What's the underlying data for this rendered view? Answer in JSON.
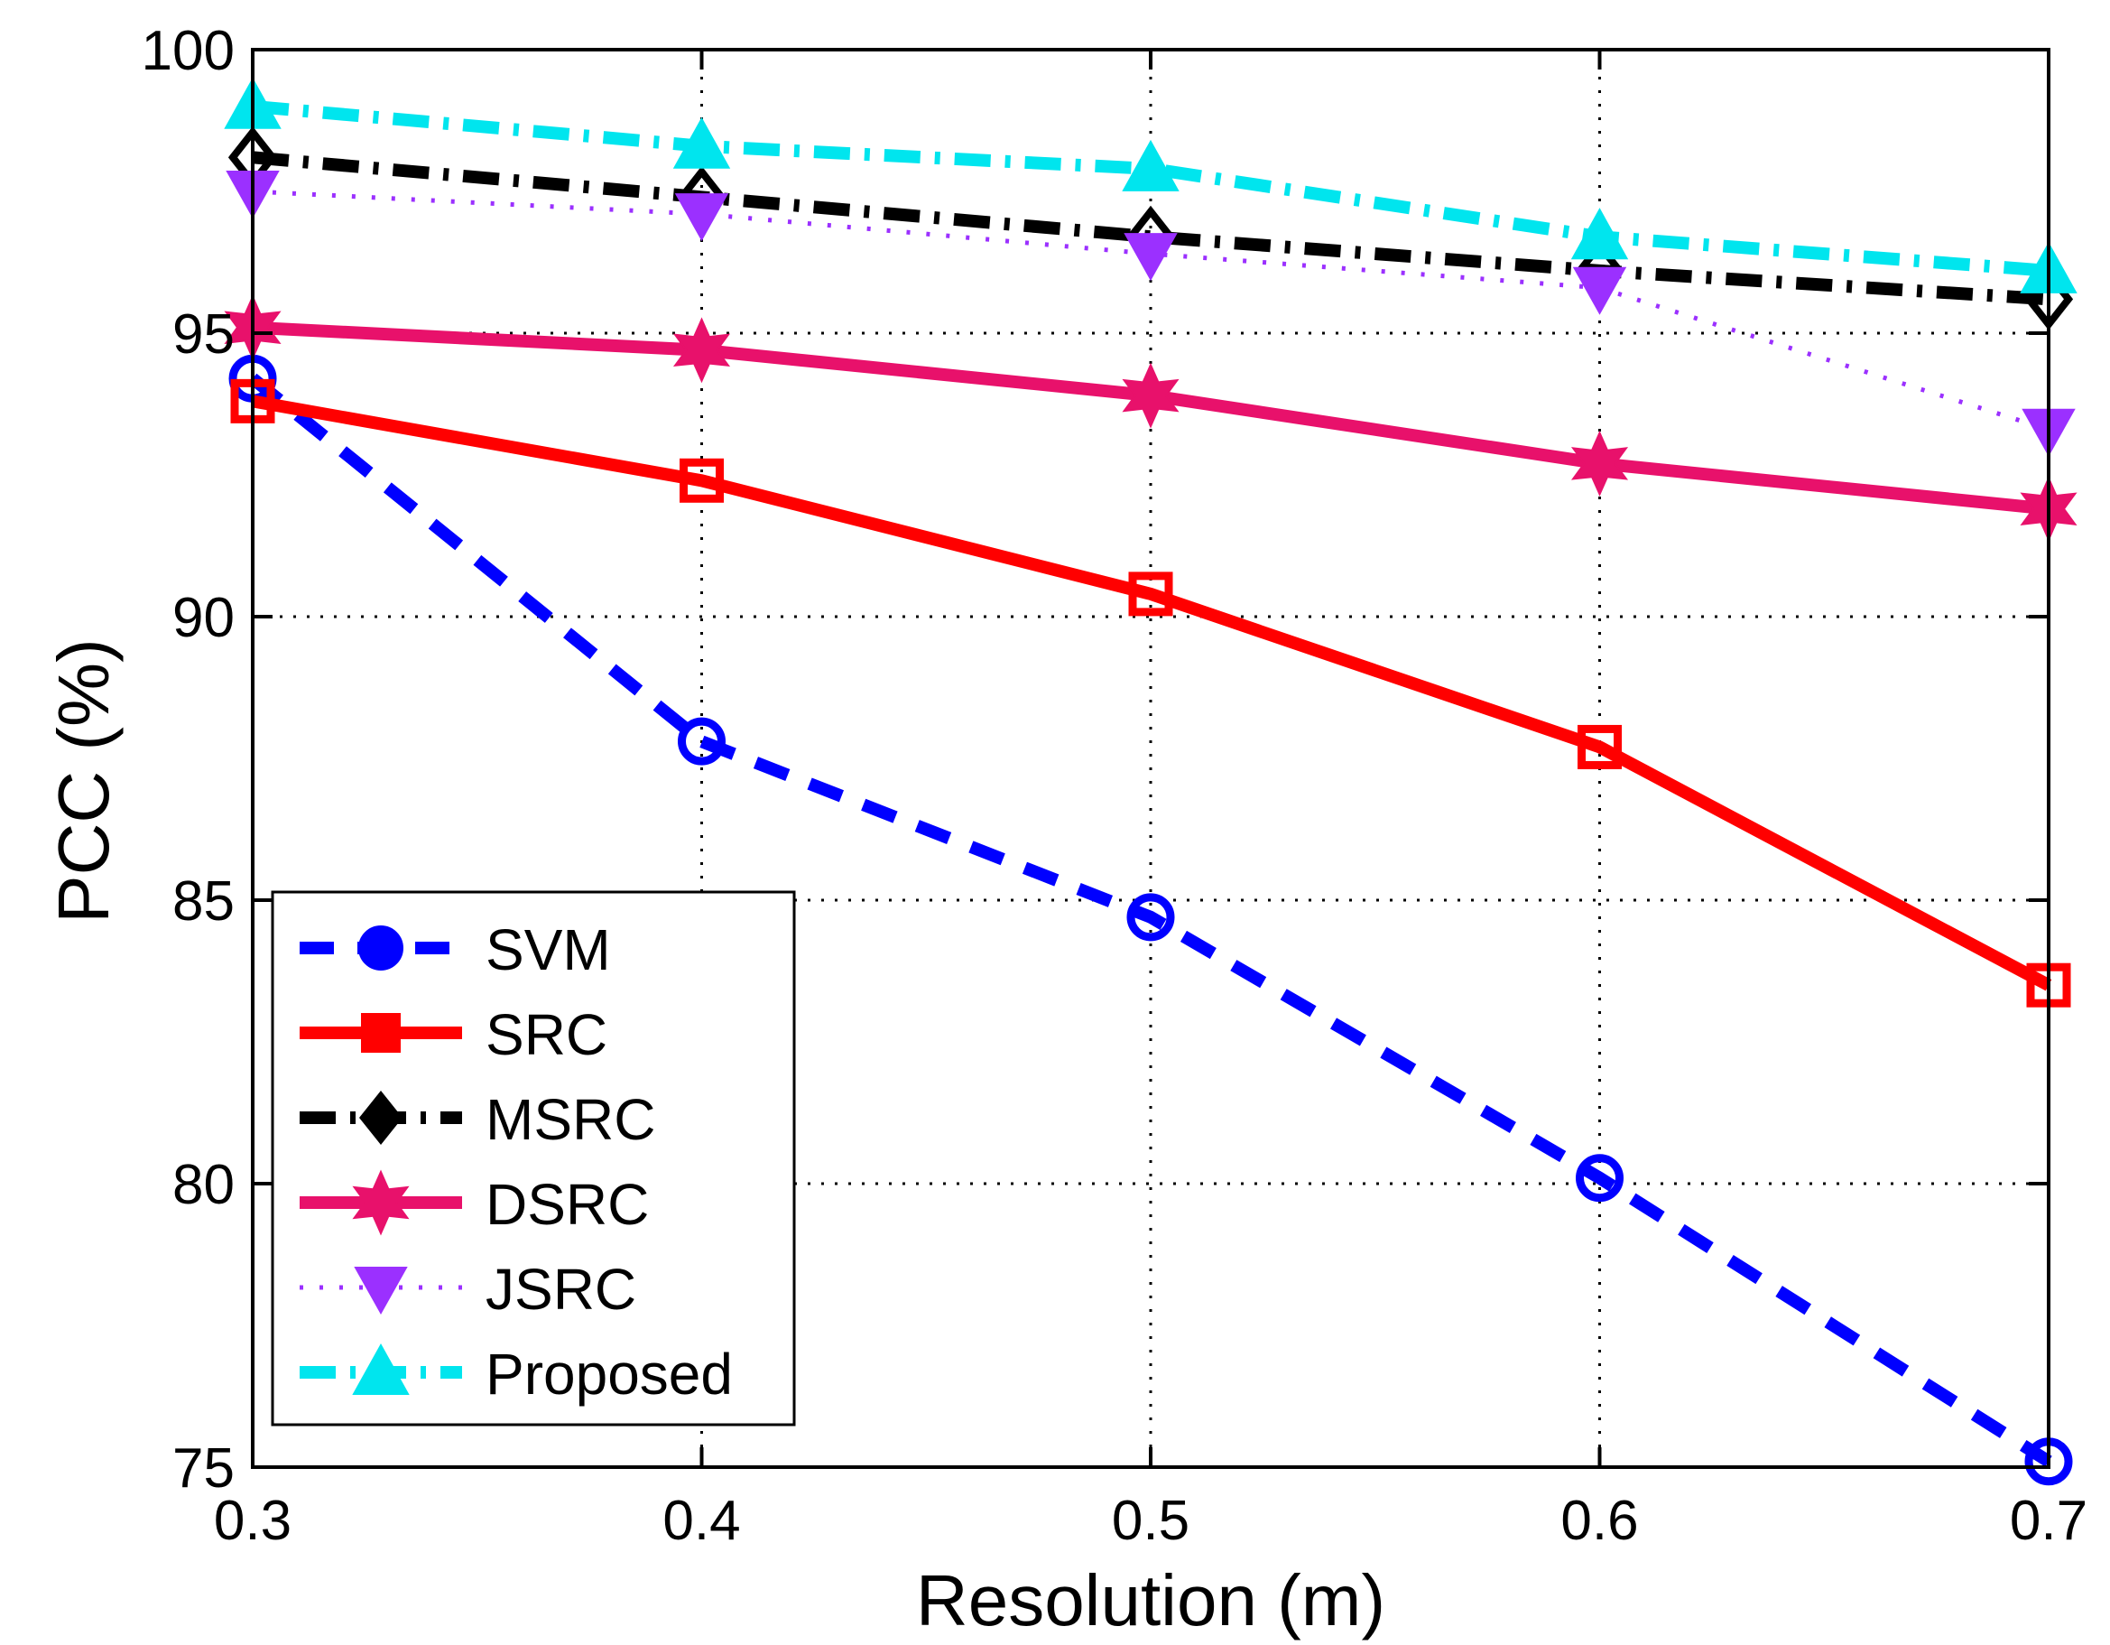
{
  "chart_data": {
    "type": "line",
    "title": "",
    "xlabel": "Resolution (m)",
    "ylabel": "PCC (%)",
    "xlim": [
      0.3,
      0.7
    ],
    "ylim": [
      75,
      100
    ],
    "xticks": [
      0.3,
      0.4,
      0.5,
      0.6,
      0.7
    ],
    "yticks": [
      75,
      80,
      85,
      90,
      95,
      100
    ],
    "xtick_labels": [
      "0.3",
      "0.4",
      "0.5",
      "0.6",
      "0.7"
    ],
    "ytick_labels": [
      "75",
      "80",
      "85",
      "90",
      "95",
      "100"
    ],
    "grid": true,
    "legend_position": "lower-left",
    "x": [
      0.3,
      0.4,
      0.5,
      0.6,
      0.7
    ],
    "series": [
      {
        "name": "SVM",
        "values": [
          94.2,
          87.8,
          84.7,
          80.1,
          75.1
        ],
        "color": "#0000ff",
        "dash": "dashed",
        "marker": "circle"
      },
      {
        "name": "SRC",
        "values": [
          93.8,
          92.4,
          90.4,
          87.7,
          83.5
        ],
        "color": "#ff0000",
        "dash": "solid",
        "marker": "square"
      },
      {
        "name": "MSRC",
        "values": [
          98.1,
          97.4,
          96.7,
          96.1,
          95.6
        ],
        "color": "#000000",
        "dash": "dashdot",
        "marker": "diamond"
      },
      {
        "name": "DSRC",
        "values": [
          95.1,
          94.7,
          93.9,
          92.7,
          91.9
        ],
        "color": "#e8116b",
        "dash": "solid",
        "marker": "star"
      },
      {
        "name": "JSRC",
        "values": [
          97.5,
          97.1,
          96.4,
          95.8,
          93.3
        ],
        "color": "#9b30ff",
        "dash": "dotted",
        "marker": "triangle-down"
      },
      {
        "name": "Proposed",
        "values": [
          99.0,
          98.3,
          97.9,
          96.7,
          96.1
        ],
        "color": "#00e5ee",
        "dash": "dashdot",
        "marker": "triangle-up"
      }
    ]
  }
}
